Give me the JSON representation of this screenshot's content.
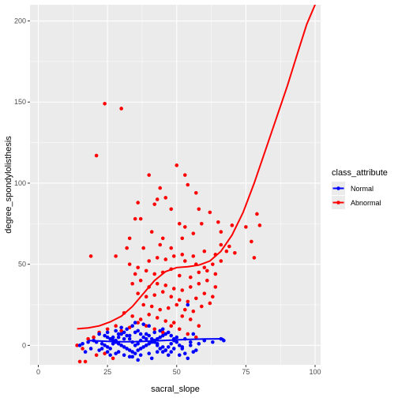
{
  "chart_data": {
    "type": "scatter",
    "xlabel": "sacral_slope",
    "ylabel": "degree_spondylolisthesis",
    "xlim": [
      -3,
      102
    ],
    "ylim": [
      -12,
      210
    ],
    "x_ticks": [
      0,
      25,
      50,
      75,
      100
    ],
    "y_ticks": [
      0,
      50,
      100,
      150,
      200
    ],
    "x_tick_labels": [
      "0",
      "25",
      "50",
      "75",
      "100"
    ],
    "y_tick_labels": [
      "0",
      "50",
      "100",
      "150",
      "200"
    ],
    "grid": true,
    "legend": {
      "title": "class_attribute",
      "placement": "right",
      "entries": [
        {
          "label": "Normal",
          "color": "#0000ff"
        },
        {
          "label": "Abnormal",
          "color": "#ff0000"
        }
      ]
    },
    "series": [
      {
        "name": "Normal",
        "color": "#0000ff",
        "points": [
          [
            22,
            7
          ],
          [
            24,
            6
          ],
          [
            25,
            5
          ],
          [
            26,
            4
          ],
          [
            27,
            3
          ],
          [
            28,
            2
          ],
          [
            29,
            1
          ],
          [
            30,
            0
          ],
          [
            31,
            -1
          ],
          [
            32,
            -2
          ],
          [
            33,
            -3
          ],
          [
            34,
            -4
          ],
          [
            35,
            -5
          ],
          [
            36,
            -3
          ],
          [
            37,
            -2
          ],
          [
            38,
            -1
          ],
          [
            39,
            0
          ],
          [
            40,
            1
          ],
          [
            41,
            2
          ],
          [
            42,
            3
          ],
          [
            43,
            4
          ],
          [
            44,
            5
          ],
          [
            45,
            6
          ],
          [
            46,
            7
          ],
          [
            47,
            8
          ],
          [
            48,
            6
          ],
          [
            49,
            4
          ],
          [
            50,
            2
          ],
          [
            51,
            0
          ],
          [
            52,
            -2
          ],
          [
            20,
            3
          ],
          [
            21,
            2
          ],
          [
            23,
            1
          ],
          [
            24,
            0
          ],
          [
            25,
            -1
          ],
          [
            26,
            -2
          ],
          [
            27,
            1
          ],
          [
            28,
            3
          ],
          [
            29,
            5
          ],
          [
            30,
            7
          ],
          [
            31,
            8
          ],
          [
            32,
            6
          ],
          [
            33,
            4
          ],
          [
            34,
            2
          ],
          [
            35,
            0
          ],
          [
            36,
            1
          ],
          [
            37,
            3
          ],
          [
            38,
            5
          ],
          [
            39,
            7
          ],
          [
            40,
            6
          ],
          [
            41,
            4
          ],
          [
            42,
            2
          ],
          [
            43,
            0
          ],
          [
            44,
            -2
          ],
          [
            45,
            -4
          ],
          [
            46,
            -3
          ],
          [
            47,
            -1
          ],
          [
            48,
            1
          ],
          [
            49,
            3
          ],
          [
            50,
            5
          ],
          [
            19,
            -2
          ],
          [
            22,
            -3
          ],
          [
            25,
            -4
          ],
          [
            28,
            -5
          ],
          [
            31,
            -6
          ],
          [
            34,
            -7
          ],
          [
            37,
            -6
          ],
          [
            40,
            -5
          ],
          [
            43,
            -4
          ],
          [
            46,
            -3
          ],
          [
            49,
            -2
          ],
          [
            52,
            -1
          ],
          [
            55,
            0
          ],
          [
            58,
            1
          ],
          [
            53,
            4
          ],
          [
            55,
            2
          ],
          [
            56,
            7
          ],
          [
            57,
            -3
          ],
          [
            60,
            3
          ],
          [
            63,
            2
          ],
          [
            66,
            4
          ],
          [
            67,
            3
          ],
          [
            54,
            -8
          ],
          [
            47,
            -6
          ],
          [
            41,
            -8
          ],
          [
            36,
            -9
          ],
          [
            33,
            -7
          ],
          [
            29,
            -4
          ],
          [
            26,
            -6
          ],
          [
            23,
            -2
          ],
          [
            28,
            9
          ],
          [
            32,
            10
          ],
          [
            36,
            9
          ],
          [
            30,
            11
          ],
          [
            34,
            12
          ],
          [
            38,
            13
          ],
          [
            42,
            8
          ],
          [
            44,
            9
          ],
          [
            35,
            8
          ],
          [
            33,
            6
          ],
          [
            31,
            4
          ],
          [
            27,
            5
          ],
          [
            25,
            8
          ],
          [
            29,
            7
          ],
          [
            37,
            7
          ],
          [
            39,
            4
          ],
          [
            43,
            1
          ],
          [
            45,
            -1
          ],
          [
            48,
            -4
          ],
          [
            51,
            -6
          ],
          [
            53,
            -5
          ],
          [
            56,
            -4
          ],
          [
            54,
            25
          ],
          [
            35,
            14
          ],
          [
            40,
            12
          ],
          [
            45,
            10
          ],
          [
            18,
            2
          ],
          [
            17,
            -4
          ],
          [
            16,
            1
          ],
          [
            15,
            0
          ]
        ],
        "fit": [
          [
            18,
            3.0
          ],
          [
            25,
            2.5
          ],
          [
            30,
            2.2
          ],
          [
            35,
            2.3
          ],
          [
            40,
            2.6
          ],
          [
            45,
            3.0
          ],
          [
            50,
            3.4
          ],
          [
            55,
            3.7
          ],
          [
            60,
            3.9
          ],
          [
            65,
            4.0
          ],
          [
            67,
            4.1
          ]
        ]
      },
      {
        "name": "Abnormal",
        "color": "#ff0000",
        "points": [
          [
            24,
            149
          ],
          [
            30,
            146
          ],
          [
            21,
            117
          ],
          [
            40,
            105
          ],
          [
            53,
            105
          ],
          [
            50,
            111
          ],
          [
            36,
            88
          ],
          [
            44,
            97
          ],
          [
            54,
            99
          ],
          [
            43,
            90
          ],
          [
            46,
            91
          ],
          [
            57,
            94
          ],
          [
            42,
            87
          ],
          [
            48,
            84
          ],
          [
            58,
            84
          ],
          [
            62,
            82
          ],
          [
            65,
            76
          ],
          [
            35,
            78
          ],
          [
            37,
            78
          ],
          [
            51,
            75
          ],
          [
            53,
            73
          ],
          [
            59,
            75
          ],
          [
            66,
            70
          ],
          [
            70,
            74
          ],
          [
            75,
            73
          ],
          [
            79,
            81
          ],
          [
            80,
            74
          ],
          [
            77,
            64
          ],
          [
            78,
            54
          ],
          [
            19,
            55
          ],
          [
            32,
            60
          ],
          [
            38,
            60
          ],
          [
            44,
            62
          ],
          [
            48,
            60
          ],
          [
            52,
            56
          ],
          [
            56,
            55
          ],
          [
            60,
            58
          ],
          [
            64,
            56
          ],
          [
            68,
            58
          ],
          [
            71,
            57
          ],
          [
            33,
            50
          ],
          [
            36,
            48
          ],
          [
            40,
            52
          ],
          [
            43,
            54
          ],
          [
            46,
            53
          ],
          [
            49,
            55
          ],
          [
            53,
            52
          ],
          [
            57,
            50
          ],
          [
            60,
            48
          ],
          [
            63,
            50
          ],
          [
            66,
            52
          ],
          [
            35,
            44
          ],
          [
            39,
            46
          ],
          [
            42,
            44
          ],
          [
            45,
            45
          ],
          [
            48,
            47
          ],
          [
            51,
            43
          ],
          [
            55,
            42
          ],
          [
            58,
            45
          ],
          [
            61,
            46
          ],
          [
            64,
            44
          ],
          [
            34,
            38
          ],
          [
            37,
            40
          ],
          [
            40,
            36
          ],
          [
            43,
            38
          ],
          [
            46,
            37
          ],
          [
            49,
            35
          ],
          [
            52,
            34
          ],
          [
            55,
            36
          ],
          [
            58,
            38
          ],
          [
            61,
            40
          ],
          [
            64,
            36
          ],
          [
            36,
            32
          ],
          [
            39,
            30
          ],
          [
            42,
            31
          ],
          [
            45,
            33
          ],
          [
            48,
            30
          ],
          [
            51,
            28
          ],
          [
            54,
            27
          ],
          [
            57,
            29
          ],
          [
            60,
            32
          ],
          [
            63,
            30
          ],
          [
            38,
            25
          ],
          [
            41,
            24
          ],
          [
            44,
            22
          ],
          [
            47,
            23
          ],
          [
            50,
            25
          ],
          [
            53,
            22
          ],
          [
            56,
            21
          ],
          [
            59,
            24
          ],
          [
            62,
            26
          ],
          [
            31,
            20
          ],
          [
            34,
            18
          ],
          [
            37,
            16
          ],
          [
            40,
            19
          ],
          [
            43,
            17
          ],
          [
            46,
            15
          ],
          [
            49,
            14
          ],
          [
            52,
            18
          ],
          [
            55,
            16
          ],
          [
            58,
            12
          ],
          [
            28,
            12
          ],
          [
            25,
            10
          ],
          [
            22,
            8
          ],
          [
            20,
            5
          ],
          [
            18,
            4
          ],
          [
            16,
            -2
          ],
          [
            15,
            -10
          ],
          [
            17,
            -10
          ],
          [
            21,
            -6
          ],
          [
            24,
            -5
          ],
          [
            27,
            -8
          ],
          [
            30,
            9
          ],
          [
            33,
            11
          ],
          [
            36,
            14
          ],
          [
            39,
            12
          ],
          [
            42,
            10
          ],
          [
            45,
            8
          ],
          [
            48,
            12
          ],
          [
            51,
            10
          ],
          [
            54,
            7
          ],
          [
            57,
            5
          ],
          [
            14,
            0
          ],
          [
            28,
            55
          ],
          [
            33,
            66
          ],
          [
            41,
            70
          ],
          [
            45,
            66
          ],
          [
            52,
            66
          ],
          [
            56,
            69
          ],
          [
            66,
            62
          ],
          [
            69,
            61
          ]
        ],
        "fit": [
          [
            14,
            10.2
          ],
          [
            18,
            10.8
          ],
          [
            22,
            12.0
          ],
          [
            26,
            14.5
          ],
          [
            30,
            18.0
          ],
          [
            34,
            24.0
          ],
          [
            38,
            32.0
          ],
          [
            42,
            40.0
          ],
          [
            46,
            45.5
          ],
          [
            50,
            48.0
          ],
          [
            54,
            48.5
          ],
          [
            58,
            49.5
          ],
          [
            62,
            52.0
          ],
          [
            66,
            58.0
          ],
          [
            70,
            68.0
          ],
          [
            74,
            82.0
          ],
          [
            78,
            100.0
          ],
          [
            82,
            120.0
          ],
          [
            86,
            140.0
          ],
          [
            90,
            160.0
          ],
          [
            94,
            182.0
          ],
          [
            97,
            198.0
          ],
          [
            100,
            210.0
          ]
        ]
      }
    ]
  }
}
